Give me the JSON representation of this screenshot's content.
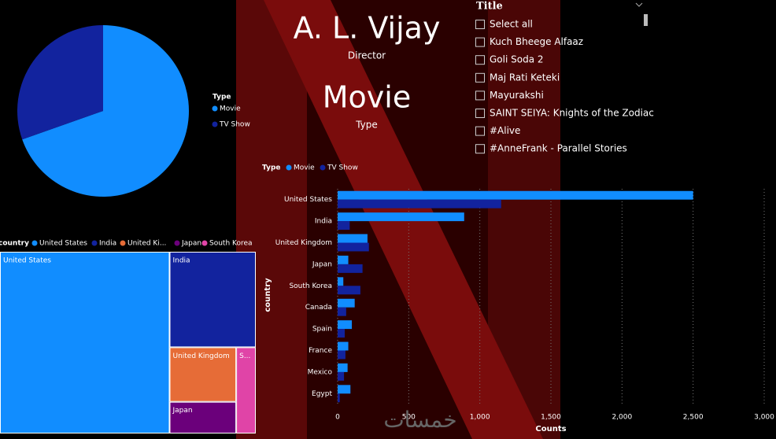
{
  "chart_data": [
    {
      "type": "pie",
      "legend_title": "Type",
      "categories": [
        "Movie",
        "TV Show"
      ],
      "values": [
        69.6,
        30.4
      ],
      "colors": [
        "#118dff",
        "#12239e"
      ]
    },
    {
      "type": "treemap",
      "legend_title": "country",
      "legend_labels": [
        "United States",
        "India",
        "United Ki...",
        "Japan",
        "South Korea"
      ],
      "categories": [
        "United States",
        "India",
        "United Kingdom",
        "Japan",
        "S..."
      ],
      "values": [
        3650,
        975,
        430,
        250,
        200
      ],
      "colors": [
        "#118dff",
        "#12239e",
        "#e66c37",
        "#6b007b",
        "#e044a7"
      ]
    },
    {
      "type": "hbar",
      "legend_title": "Type",
      "xlabel": "Counts",
      "ylabel": "country",
      "categories": [
        "United States",
        "India",
        "United Kingdom",
        "Japan",
        "South Korea",
        "Canada",
        "Spain",
        "France",
        "Mexico",
        "Egypt"
      ],
      "series": [
        {
          "name": "Movie",
          "color": "#118dff",
          "values": [
            2500,
            890,
            210,
            75,
            40,
            120,
            100,
            75,
            70,
            90
          ]
        },
        {
          "name": "TV Show",
          "color": "#12239e",
          "values": [
            1150,
            85,
            220,
            175,
            160,
            60,
            50,
            55,
            45,
            15
          ]
        }
      ],
      "xlim": [
        0,
        3000
      ],
      "xticks": [
        0,
        500,
        {
          "value": 1000,
          "label": "1,000"
        },
        {
          "value": 1500,
          "label": "1,500"
        },
        {
          "value": 2000,
          "label": "2,000"
        },
        {
          "value": 2500,
          "label": "2,500"
        },
        {
          "value": 3000,
          "label": "3,000"
        }
      ],
      "grid": true
    }
  ],
  "cards": [
    {
      "value": "A. L. Vijay",
      "label": "Director"
    },
    {
      "value": "Movie",
      "label": "Type"
    }
  ],
  "slicer": {
    "title": "Title",
    "items": [
      "Select all",
      "Kuch Bheege Alfaaz",
      "Goli Soda 2",
      "Maj Rati Keteki",
      "Mayurakshi",
      "SAINT SEIYA: Knights of the Zodiac",
      "#Alive",
      "#AnneFrank - Parallel Stories"
    ]
  },
  "watermark": "خمسات"
}
